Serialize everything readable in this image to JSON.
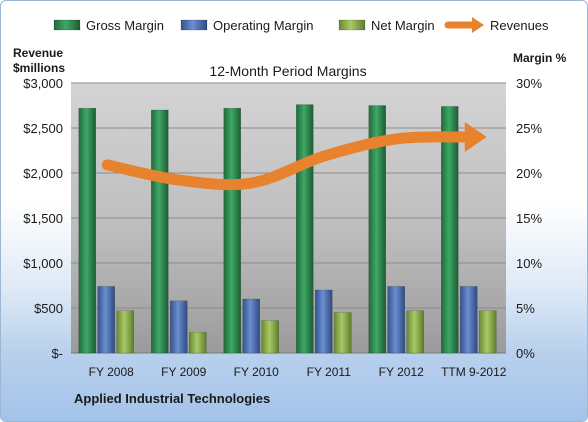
{
  "chart_data": {
    "type": "bar",
    "title": "12-Month Period Margins",
    "company": "Applied Industrial Technologies",
    "left_axis_title": [
      "Revenue",
      "$millions"
    ],
    "right_axis_title": "Margin %",
    "categories": [
      "FY 2008",
      "FY 2009",
      "FY 2010",
      "FY 2011",
      "FY 2012",
      "TTM 9-2012"
    ],
    "series": [
      {
        "name": "Gross Margin",
        "axis": "right",
        "unit": "%",
        "color": "#2e8b4f",
        "values": [
          27.2,
          27.0,
          27.2,
          27.6,
          27.5,
          27.4
        ]
      },
      {
        "name": "Operating Margin",
        "axis": "right",
        "unit": "%",
        "color": "#4f74b8",
        "values": [
          7.4,
          5.8,
          6.0,
          7.0,
          7.4,
          7.4
        ]
      },
      {
        "name": "Net Margin",
        "axis": "right",
        "unit": "%",
        "color": "#8fb34a",
        "values": [
          4.7,
          2.3,
          3.6,
          4.5,
          4.7,
          4.7
        ]
      },
      {
        "name": "Revenues",
        "axis": "left",
        "type": "line",
        "unit": "$millions",
        "color": "#e8822e",
        "values": [
          2090,
          1920,
          1890,
          2190,
          2380,
          2400
        ]
      }
    ],
    "left_axis": {
      "min": 0,
      "max": 3000,
      "step": 500,
      "ticks": [
        "$-",
        "$500",
        "$1,000",
        "$1,500",
        "$2,000",
        "$2,500",
        "$3,000"
      ]
    },
    "right_axis": {
      "min": 0,
      "max": 30,
      "step": 5,
      "ticks": [
        "0%",
        "5%",
        "10%",
        "15%",
        "20%",
        "25%",
        "30%"
      ]
    },
    "legend_position": "top",
    "grid": true
  }
}
